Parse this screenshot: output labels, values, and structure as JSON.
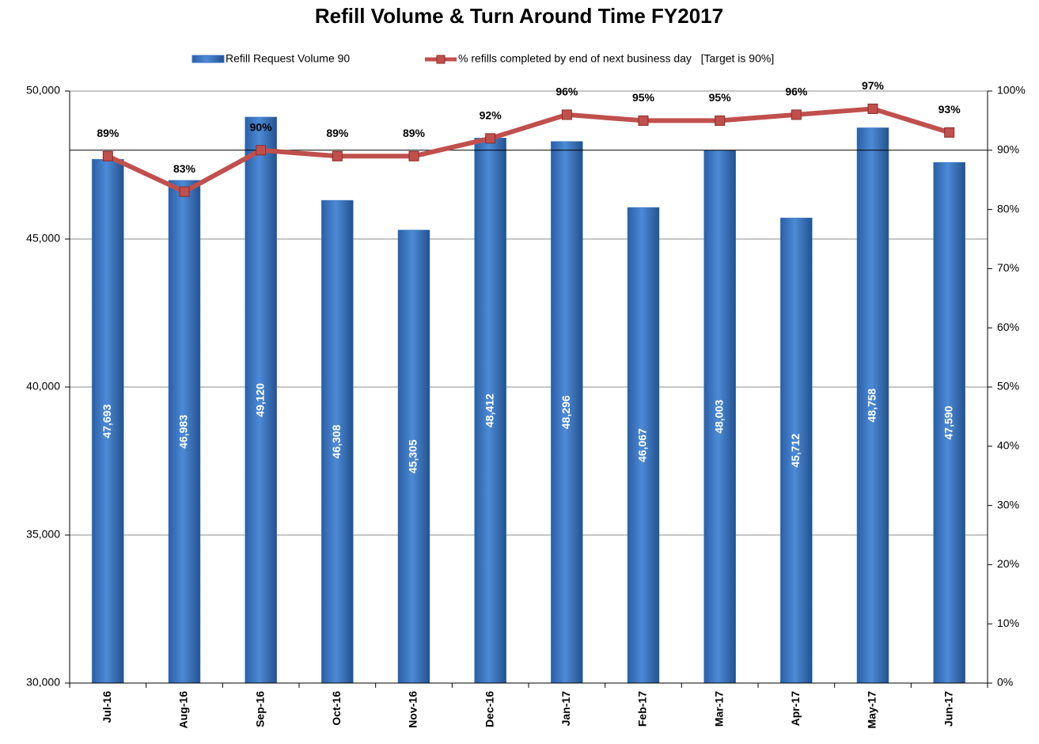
{
  "chart_data": {
    "type": "bar_line",
    "title": "Refill Volume & Turn Around Time FY2017",
    "categories": [
      "Jul-16",
      "Aug-16",
      "Sep-16",
      "Oct-16",
      "Nov-16",
      "Dec-16",
      "Jan-17",
      "Feb-17",
      "Mar-17",
      "Apr-17",
      "May-17",
      "Jun-17"
    ],
    "series": [
      {
        "name": "Refill Request Volume 90",
        "type": "bar",
        "color": "#3b78c4",
        "values": [
          47693,
          46983,
          49120,
          46308,
          45305,
          48412,
          48296,
          46067,
          48003,
          45712,
          48758,
          47590
        ],
        "value_labels": [
          "47,693",
          "46,983",
          "49,120",
          "46,308",
          "45,305",
          "48,412",
          "48,296",
          "46,067",
          "48,003",
          "45,712",
          "48,758",
          "47,590"
        ]
      },
      {
        "name": "% refills completed by end of next business day   [Target is 90%]",
        "type": "line",
        "axis": "y2",
        "color": "#c0504d",
        "values": [
          89,
          83,
          90,
          89,
          89,
          92,
          96,
          95,
          95,
          96,
          97,
          93
        ],
        "value_labels": [
          "89%",
          "83%",
          "90%",
          "89%",
          "89%",
          "92%",
          "96%",
          "95%",
          "95%",
          "96%",
          "97%",
          "93%"
        ]
      }
    ],
    "target_line": 90,
    "ylim": [
      30000,
      50000
    ],
    "yticks": [
      {
        "value": 30000,
        "label": "30,000"
      },
      {
        "value": 35000,
        "label": "35,000"
      },
      {
        "value": 40000,
        "label": "40,000"
      },
      {
        "value": 45000,
        "label": "45,000"
      },
      {
        "value": 50000,
        "label": "50,000"
      }
    ],
    "y2lim": [
      0,
      100
    ],
    "y2ticks": [
      {
        "value": 0,
        "label": "0%"
      },
      {
        "value": 10,
        "label": "10%"
      },
      {
        "value": 20,
        "label": "20%"
      },
      {
        "value": 30,
        "label": "30%"
      },
      {
        "value": 40,
        "label": "40%"
      },
      {
        "value": 50,
        "label": "50%"
      },
      {
        "value": 60,
        "label": "60%"
      },
      {
        "value": 70,
        "label": "70%"
      },
      {
        "value": 80,
        "label": "80%"
      },
      {
        "value": 90,
        "label": "90%"
      },
      {
        "value": 100,
        "label": "100%"
      }
    ],
    "grid": true,
    "legend": "top"
  }
}
